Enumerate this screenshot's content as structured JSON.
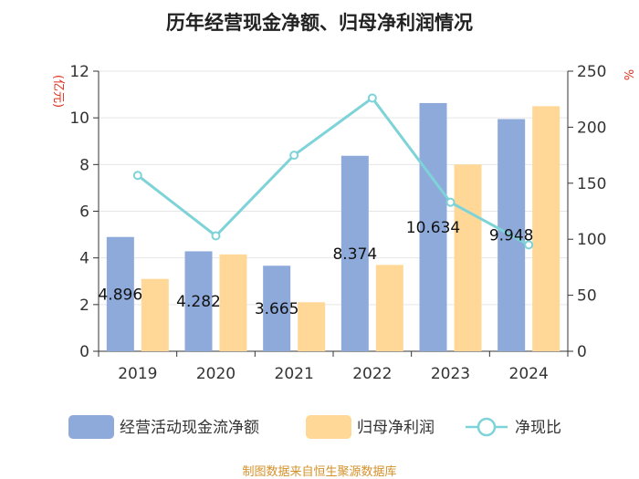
{
  "chart_data": {
    "type": "bar+line",
    "title": "历年经营现金净额、归母净利润情况",
    "categories": [
      "2019",
      "2020",
      "2021",
      "2022",
      "2023",
      "2024"
    ],
    "series": [
      {
        "name": "经营活动现金流净额",
        "type": "bar",
        "axis": "left",
        "color": "#8eaadb",
        "values": [
          4.896,
          4.282,
          3.665,
          8.374,
          10.634,
          9.948
        ]
      },
      {
        "name": "归母净利润",
        "type": "bar",
        "axis": "left",
        "color": "#ffd898",
        "values": [
          3.1,
          4.15,
          2.1,
          3.7,
          8.0,
          10.5
        ]
      },
      {
        "name": "净现比",
        "type": "line",
        "axis": "right",
        "color": "#7dd3d8",
        "values": [
          157,
          103,
          175,
          226,
          133,
          95
        ]
      }
    ],
    "data_labels": [
      "4.896",
      "4.282",
      "3.665",
      "8.374",
      "10.634",
      "9.948"
    ],
    "left_axis": {
      "label": "(亿元)",
      "min": 0,
      "max": 12,
      "ticks": [
        0,
        2,
        4,
        6,
        8,
        10,
        12
      ]
    },
    "right_axis": {
      "label": "%",
      "min": 0,
      "max": 250,
      "ticks": [
        0,
        50,
        100,
        150,
        200,
        250
      ]
    },
    "legend": [
      "经营活动现金流净额",
      "归母净利润",
      "净现比"
    ],
    "legend_position": "bottom",
    "grid": true
  },
  "source": "制图数据来自恒生聚源数据库"
}
